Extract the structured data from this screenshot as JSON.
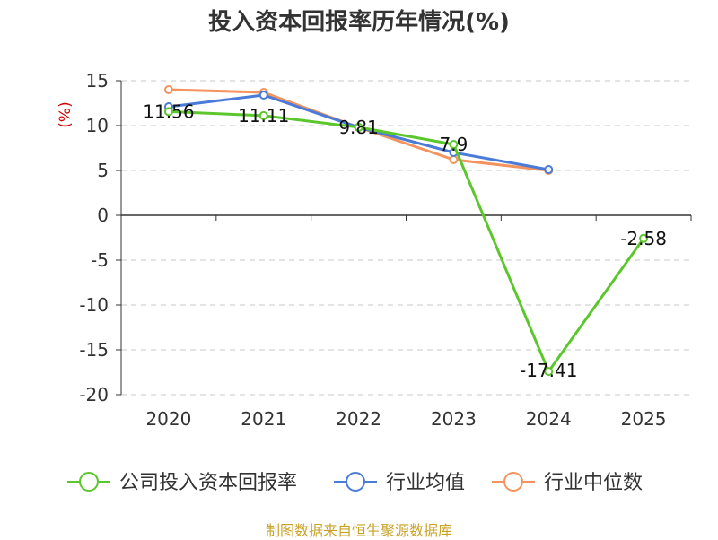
{
  "chart_data": {
    "type": "line",
    "title": "投入资本回报率历年情况(%)",
    "ylabel": "(%)",
    "xlabel": "",
    "categories": [
      "2020",
      "2021",
      "2022",
      "2023",
      "2024",
      "2025"
    ],
    "ylim": [
      -20,
      15
    ],
    "yticks": [
      15,
      10,
      5,
      0,
      -5,
      -10,
      -15,
      -20
    ],
    "grid": true,
    "legend_position": "bottom",
    "series": [
      {
        "name": "公司投入资本回报率",
        "color": "#5cc72d",
        "values": [
          11.56,
          11.11,
          9.81,
          7.9,
          -17.41,
          -2.58
        ],
        "labels": [
          "11.56",
          "11.11",
          "9.81",
          "7.9",
          "-17.41",
          "-2.58"
        ]
      },
      {
        "name": "行业均值",
        "color": "#4a7bd8",
        "values": [
          12.1,
          13.4,
          9.8,
          7.0,
          5.1,
          null
        ]
      },
      {
        "name": "行业中位数",
        "color": "#f4935e",
        "values": [
          14.0,
          13.7,
          9.8,
          6.2,
          5.0,
          null
        ]
      }
    ]
  },
  "source_note": "制图数据来自恒生聚源数据库"
}
